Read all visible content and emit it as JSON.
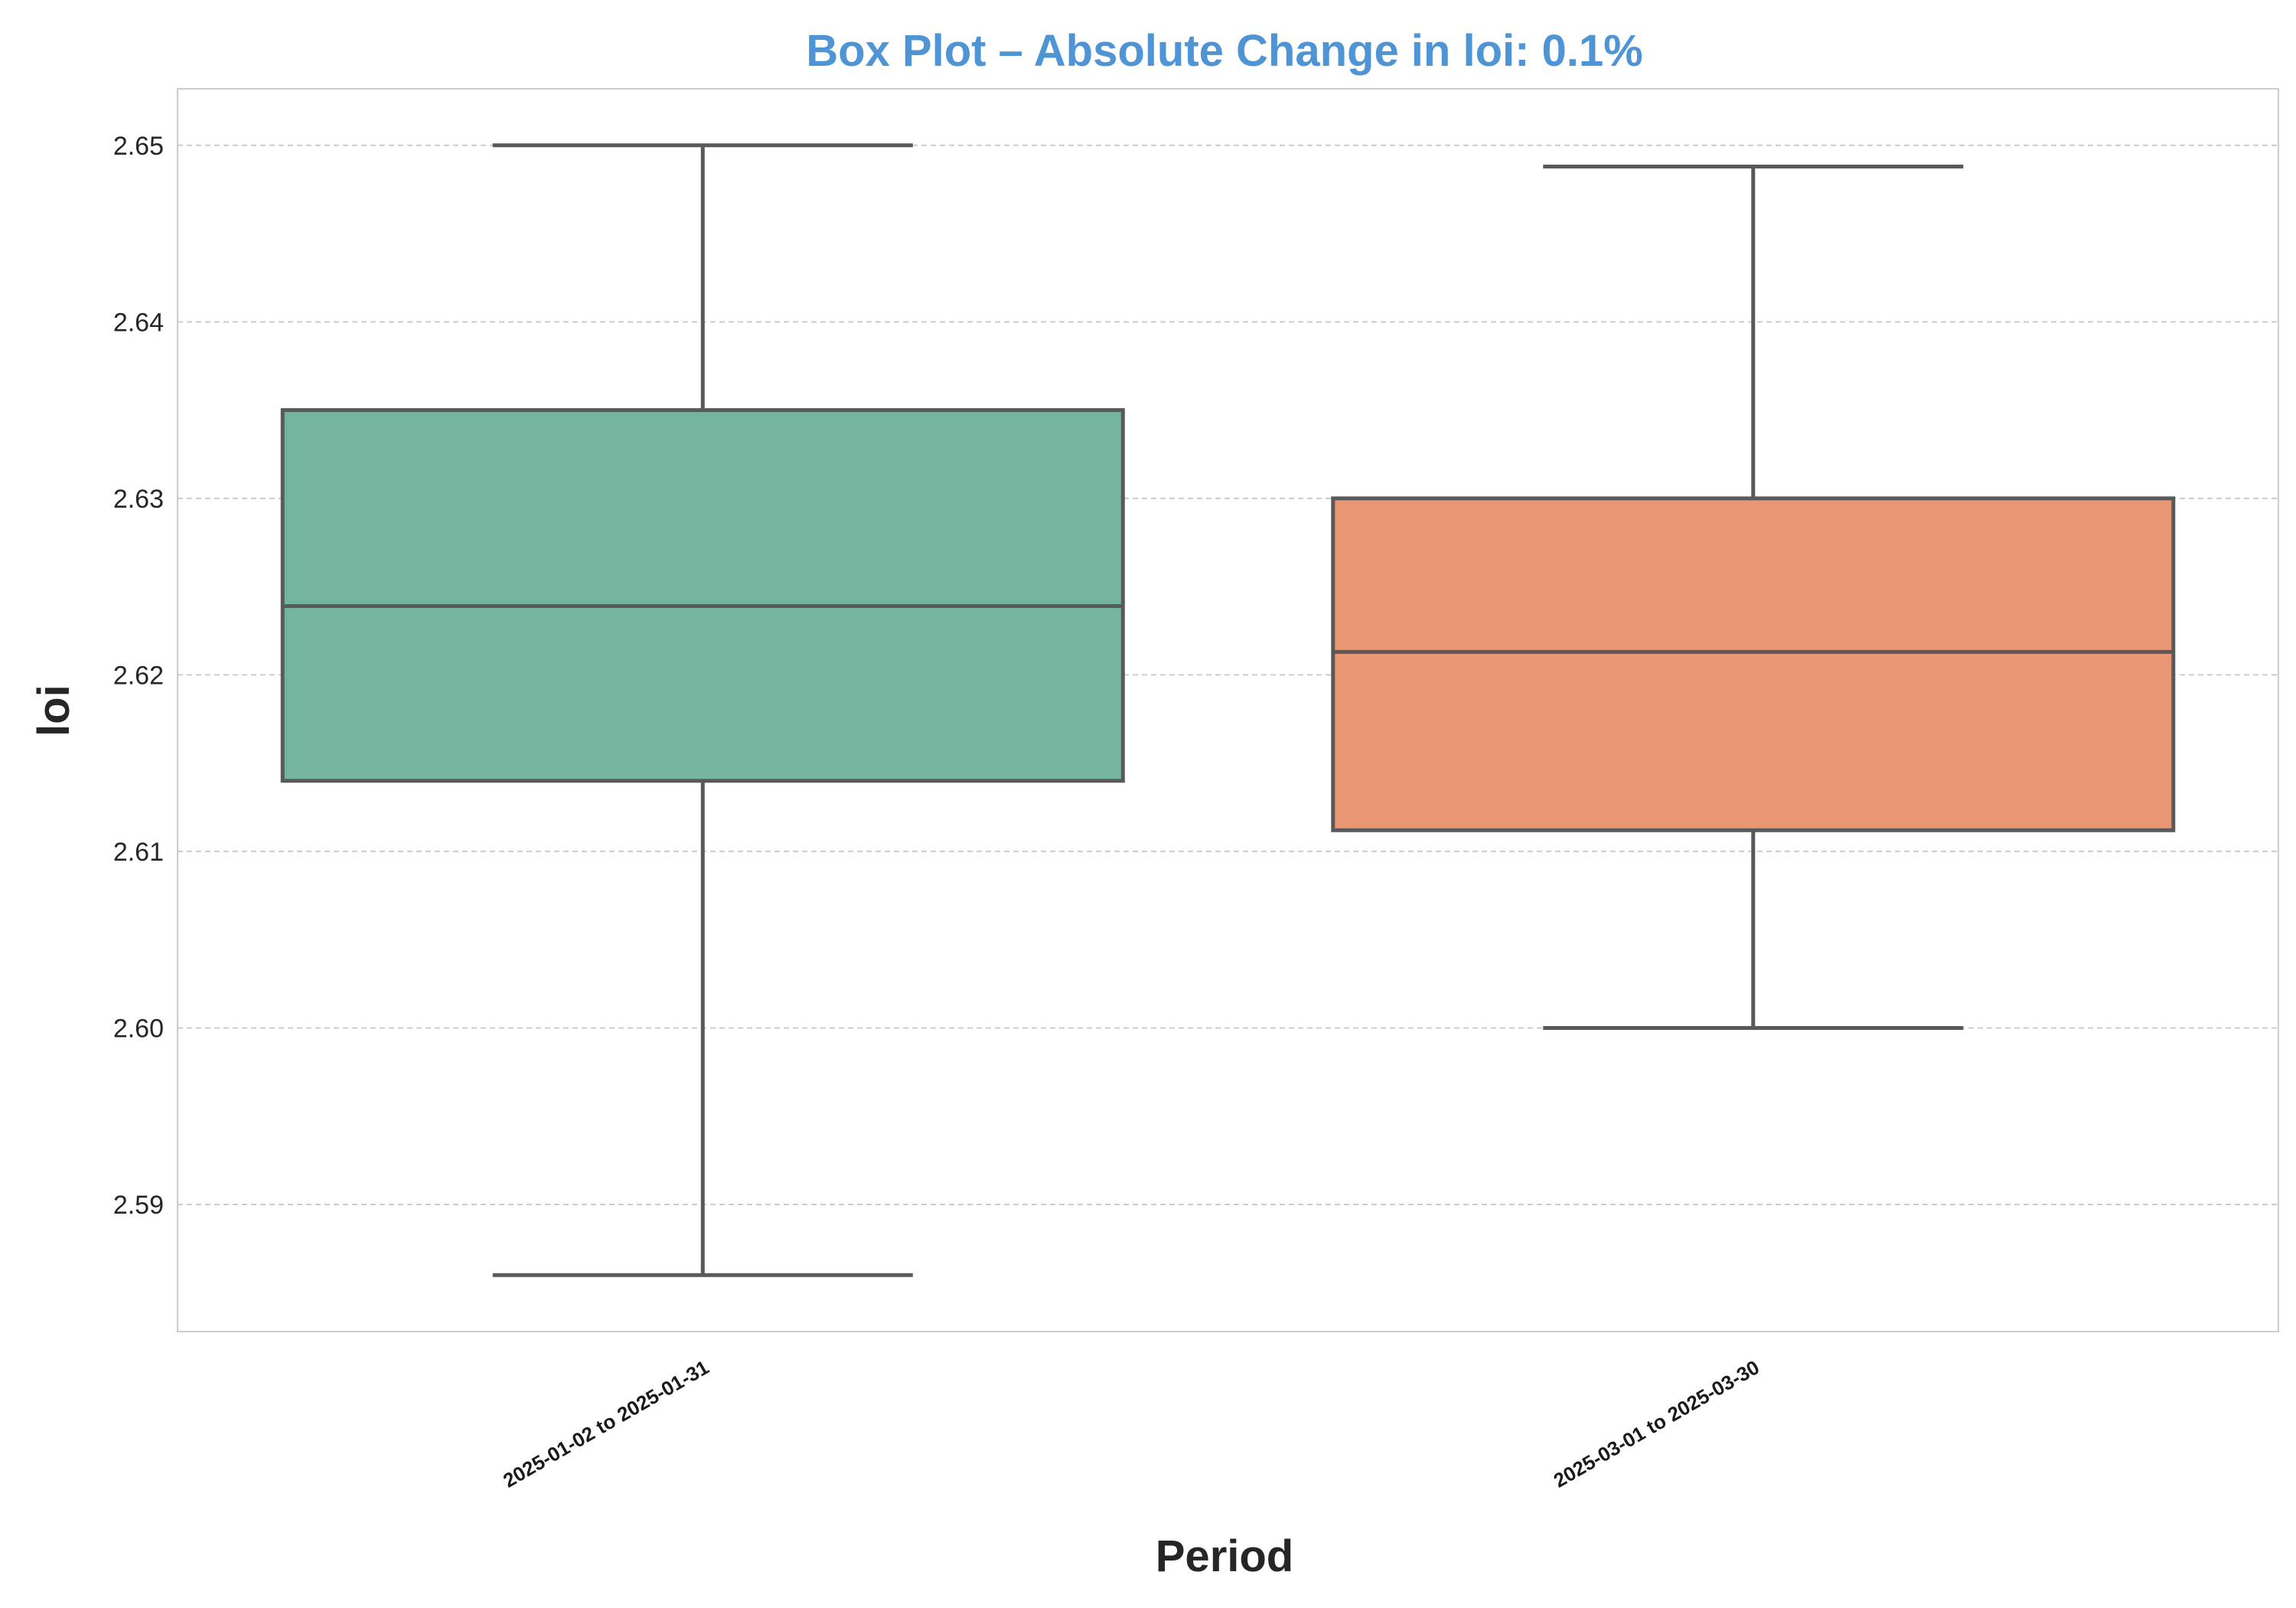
{
  "chart_data": {
    "type": "box",
    "title": "Box Plot – Absolute Change in loi: 0.1%",
    "xlabel": "Period",
    "ylabel": "loi",
    "ylim": [
      2.5828,
      2.6532
    ],
    "yticks": [
      2.59,
      2.6,
      2.61,
      2.62,
      2.63,
      2.64,
      2.65
    ],
    "ytick_labels": [
      "2.59",
      "2.60",
      "2.61",
      "2.62",
      "2.63",
      "2.64",
      "2.65"
    ],
    "grid": "y",
    "categories": [
      "2025-01-02 to 2025-01-31",
      "2025-03-01 to 2025-03-30"
    ],
    "boxes": [
      {
        "category": "2025-01-02 to 2025-01-31",
        "whisker_low": 2.586,
        "q1": 2.614,
        "median": 2.6239,
        "q3": 2.635,
        "whisker_high": 2.65
      },
      {
        "category": "2025-03-01 to 2025-03-30",
        "whisker_low": 2.6,
        "q1": 2.6112,
        "median": 2.6213,
        "q3": 2.63,
        "whisker_high": 2.6488
      }
    ]
  },
  "colors": {
    "title": "#4f94d4",
    "box_fills": [
      "#75b5a0",
      "#e89674"
    ],
    "box_lines": "#595959",
    "grid": "#cccccc",
    "frame": "#cccccc"
  }
}
